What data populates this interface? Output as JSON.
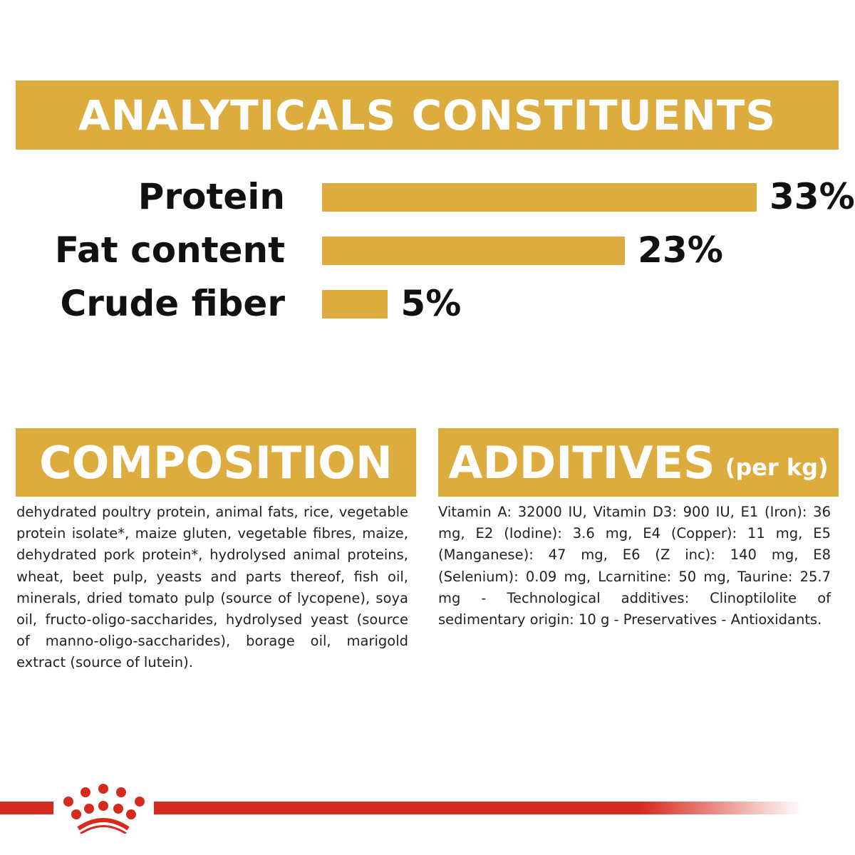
{
  "analytical": {
    "title": "ANALYTICALS CONSTITUENTS"
  },
  "chart_data": {
    "type": "bar",
    "orientation": "horizontal",
    "categories": [
      "Protein",
      "Fat content",
      "Crude fiber"
    ],
    "values": [
      33,
      23,
      5
    ],
    "data_labels": [
      "33%",
      "23%",
      "5%"
    ],
    "unit": "%",
    "color": "#ddac3e"
  },
  "composition": {
    "title": "COMPOSITION",
    "text": "dehydrated poultry protein, animal fats, rice, vegetable protein isolate*, maize gluten, vegetable fibres, maize, dehydrated pork protein*, hydrolysed animal proteins, wheat, beet pulp, yeasts and parts thereof, fish oil, minerals, dried tomato pulp (source of lycopene), soya oil, fructo-oligo-saccharides, hydrolysed yeast (source of manno-oligo-saccharides), borage oil, marigold extract (source of lutein)."
  },
  "additives": {
    "title": "ADDITIVES",
    "subtitle": "(per kg)",
    "text": "Vitamin A: 32000 IU, Vitamin D3: 900 IU, E1 (Iron): 36 mg, E2 (Iodine): 3.6 mg, E4 (Copper): 11 mg, E5 (Manganese): 47 mg, E6 (Z inc): 140 mg, E8 (Selenium): 0.09 mg, Lcarnitine: 50 mg, Taurine: 25.7 mg - Technological additives: Clinoptilolite of sedimentary origin: 10 g - Preservatives - Antioxidants."
  },
  "colors": {
    "accent": "#ddac3e",
    "brand_red": "#d52b1e"
  },
  "footer": {
    "logo": "crown-logo"
  }
}
